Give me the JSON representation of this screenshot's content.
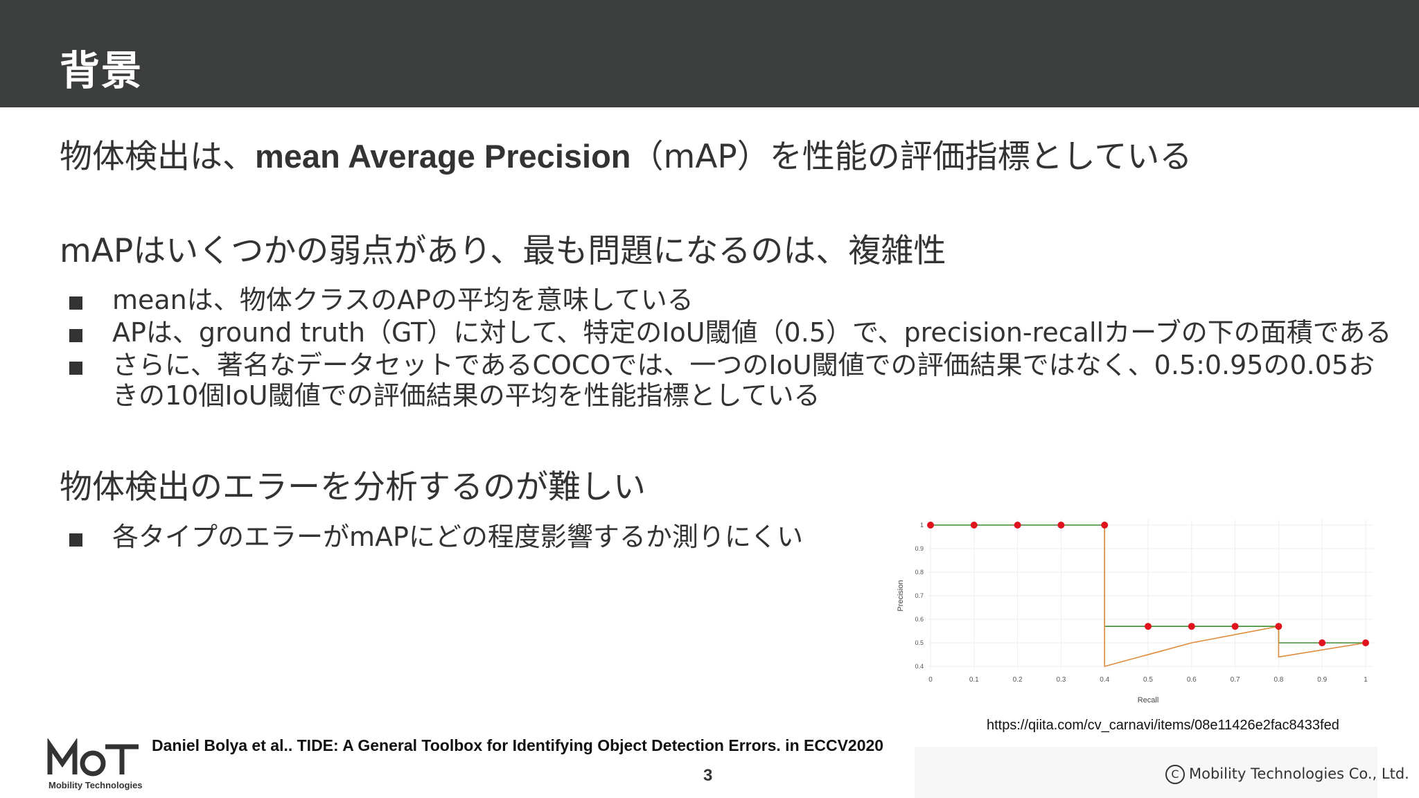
{
  "slide": {
    "title": "背景",
    "heading1": {
      "before": "物体検出は、",
      "bold": "mean Average Precision",
      "after": "（mAP）を性能の評価指標としている"
    },
    "heading2": "mAPはいくつかの弱点があり、最も問題になるのは、複雑性",
    "bullets1": [
      "meanは、物体クラスのAPの平均を意味している",
      "APは、ground truth（GT）に対して、特定のIoU閾値（0.5）で、precision-recallカーブの下の面積である",
      "さらに、著名なデータセットであるCOCOでは、一つのIoU閾値での評価結果ではなく、0.5:0.95の0.05お",
      "きの10個IoU閾値での評価結果の平均を性能指標としている"
    ],
    "heading3": "物体検出のエラーを分析するのが難しい",
    "bullets2": [
      "各タイプのエラーがmAPにどの程度影響するか測りにくい"
    ],
    "citation": "Daniel Bolya et al.. TIDE: A General Toolbox for Identifying Object Detection Errors. in ECCV2020",
    "source_url": "https://qiita.com/cv_carnavi/items/08e11426e2fac8433fed",
    "page_number": "3",
    "copyright_symbol": "C",
    "copyright_text": "Mobility Technologies Co., Ltd.",
    "logo": {
      "mark": "MoT",
      "name": "Mobility Technologies"
    }
  },
  "chart_data": {
    "type": "line",
    "xlabel": "Recall",
    "ylabel": "Precision",
    "xlim": [
      0,
      1
    ],
    "ylim": [
      0.4,
      1
    ],
    "xticks": [
      "0",
      "0.1",
      "0.2",
      "0.3",
      "0.4",
      "0.5",
      "0.6",
      "0.7",
      "0.8",
      "0.9",
      "1"
    ],
    "yticks": [
      "1",
      "0.9",
      "0.8",
      "0.7",
      "0.6",
      "0.5",
      "0.4"
    ],
    "grid": true,
    "series": [
      {
        "kind": "interpolated-step",
        "color": "#3a8a2e",
        "x": [
          0,
          0.4,
          0.4,
          0.8,
          0.8,
          1.0
        ],
        "y": [
          1.0,
          1.0,
          0.57,
          0.57,
          0.5,
          0.5
        ]
      },
      {
        "kind": "raw-curve",
        "color": "#e08a3c",
        "x": [
          0.4,
          0.4,
          0.6,
          0.8,
          0.8,
          1.0
        ],
        "y": [
          1.0,
          0.4,
          0.5,
          0.57,
          0.44,
          0.5
        ]
      },
      {
        "kind": "points",
        "color": "#e0141e",
        "x": [
          0,
          0.1,
          0.2,
          0.3,
          0.4,
          0.5,
          0.6,
          0.7,
          0.8,
          0.9,
          1.0
        ],
        "y": [
          1.0,
          1.0,
          1.0,
          1.0,
          1.0,
          0.57,
          0.57,
          0.57,
          0.57,
          0.5,
          0.5
        ]
      }
    ]
  }
}
